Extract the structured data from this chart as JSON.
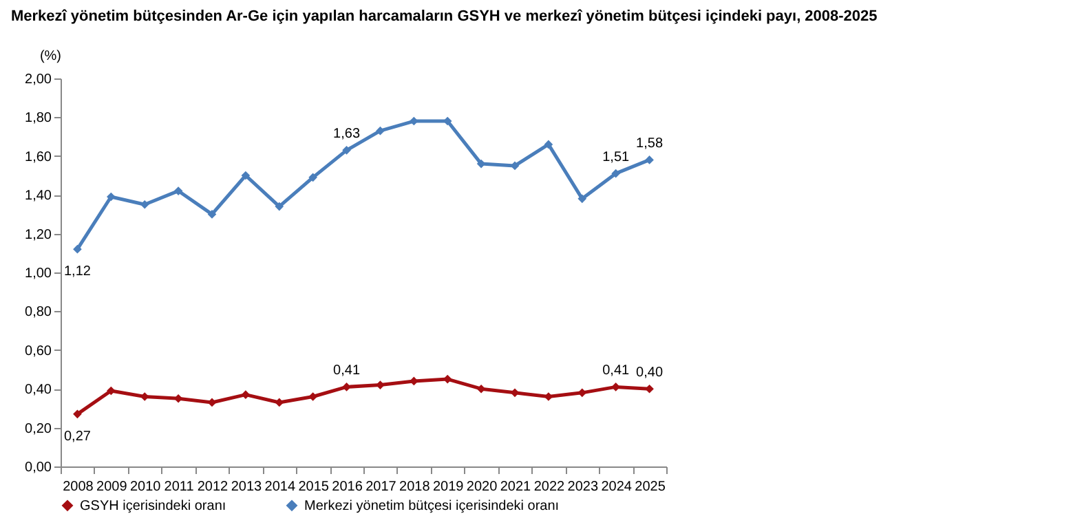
{
  "chart_data": {
    "type": "line",
    "title": "Merkezî yönetim bütçesinden Ar-Ge için yapılan harcamaların GSYH ve merkezî yönetim bütçesi içindeki payı, 2008-2025",
    "ylabel": "(%)",
    "categories": [
      "2008",
      "2009",
      "2010",
      "2011",
      "2012",
      "2013",
      "2014",
      "2015",
      "2016",
      "2017",
      "2018",
      "2019",
      "2020",
      "2021",
      "2022",
      "2023",
      "2024",
      "2025"
    ],
    "series": [
      {
        "name": "GSYH içerisindeki oranı",
        "color": "#a50e12",
        "values": [
          0.27,
          0.39,
          0.36,
          0.35,
          0.33,
          0.37,
          0.33,
          0.36,
          0.41,
          0.42,
          0.44,
          0.45,
          0.4,
          0.38,
          0.36,
          0.38,
          0.41,
          0.4
        ],
        "value_labels": [
          "0,27",
          null,
          null,
          null,
          null,
          null,
          null,
          null,
          "0,41",
          null,
          null,
          null,
          null,
          null,
          null,
          null,
          "0,41",
          "0,40"
        ]
      },
      {
        "name": "Merkezi yönetim bütçesi içerisindeki oranı",
        "color": "#4a7ebb",
        "values": [
          1.12,
          1.39,
          1.35,
          1.42,
          1.3,
          1.5,
          1.34,
          1.49,
          1.63,
          1.73,
          1.78,
          1.78,
          1.56,
          1.55,
          1.66,
          1.38,
          1.51,
          1.58
        ],
        "value_labels": [
          "1,12",
          null,
          null,
          null,
          null,
          null,
          null,
          null,
          "1,63",
          null,
          null,
          null,
          null,
          null,
          null,
          null,
          "1,51",
          "1,58"
        ]
      }
    ],
    "ylim": [
      0,
      2
    ],
    "yticks": [
      {
        "value": 0,
        "label": "0,00"
      },
      {
        "value": 0.2,
        "label": "0,20"
      },
      {
        "value": 0.4,
        "label": "0,40"
      },
      {
        "value": 0.6,
        "label": "0,60"
      },
      {
        "value": 0.8,
        "label": "0,80"
      },
      {
        "value": 1,
        "label": "1,00"
      },
      {
        "value": 1.2,
        "label": "1,20"
      },
      {
        "value": 1.4,
        "label": "1,40"
      },
      {
        "value": 1.6,
        "label": "1,60"
      },
      {
        "value": 1.8,
        "label": "1,80"
      },
      {
        "value": 2,
        "label": "2,00"
      }
    ],
    "grid": false,
    "legend": "bottom",
    "marker": "diamond",
    "line_style": "solid"
  }
}
